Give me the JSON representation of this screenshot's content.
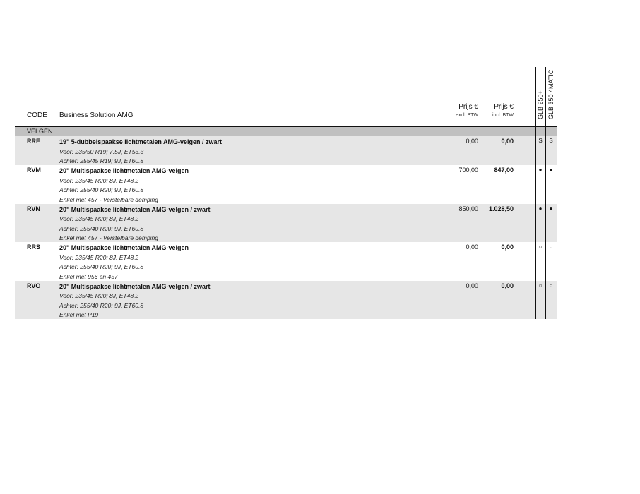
{
  "header": {
    "code": "CODE",
    "title": "Business Solution AMG",
    "price_excl_label": "Prijs €",
    "price_excl_sub": "excl. BTW",
    "price_incl_label": "Prijs €",
    "price_incl_sub": "incl. BTW",
    "models": [
      "GLB 250+",
      "GLB 350 4MATIC"
    ]
  },
  "section": "VELGEN",
  "rows": [
    {
      "code": "RRE",
      "title": "19\" 5-dubbelspaakse lichtmetalen AMG-velgen / zwart",
      "lines": [
        "Voor: 235/50 R19; 7.5J; ET53.3",
        "Achter: 255/45 R19; 9J; ET60.8"
      ],
      "excl": "0,00",
      "incl": "0,00",
      "m1": "S",
      "m2": "S"
    },
    {
      "code": "RVM",
      "title": "20\" Multispaakse lichtmetalen AMG-velgen",
      "lines": [
        "Voor: 235/45 R20; 8J; ET48.2",
        "Achter: 255/40 R20; 9J; ET60.8",
        "Enkel met 457 - Verstelbare demping"
      ],
      "excl": "700,00",
      "incl": "847,00",
      "m1": "●",
      "m2": "●"
    },
    {
      "code": "RVN",
      "title": "20\" Multispaakse lichtmetalen AMG-velgen / zwart",
      "lines": [
        "Voor: 235/45 R20; 8J; ET48.2",
        "Achter: 255/40 R20; 9J; ET60.8",
        "Enkel met 457 - Verstelbare demping"
      ],
      "excl": "850,00",
      "incl": "1.028,50",
      "m1": "●",
      "m2": "●"
    },
    {
      "code": "RRS",
      "title": "20\" Multispaakse lichtmetalen AMG-velgen",
      "lines": [
        "Voor: 235/45 R20; 8J; ET48.2",
        "Achter: 255/40 R20; 9J; ET60.8",
        "Enkel met 956 en 457"
      ],
      "excl": "0,00",
      "incl": "0,00",
      "m1": "○",
      "m2": "○"
    },
    {
      "code": "RVO",
      "title": "20\" Multispaakse lichtmetalen AMG-velgen / zwart",
      "lines": [
        "Voor: 235/45 R20; 8J; ET48.2",
        "Achter: 255/40 R20; 9J; ET60.8",
        "Enkel met P19"
      ],
      "excl": "0,00",
      "incl": "0,00",
      "m1": "○",
      "m2": "○"
    }
  ]
}
